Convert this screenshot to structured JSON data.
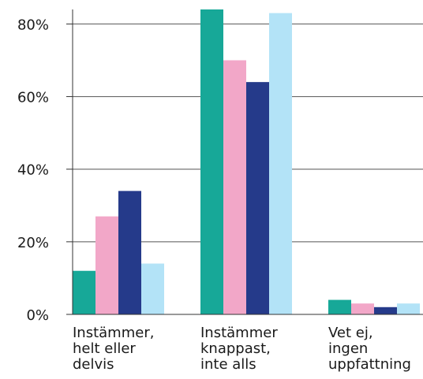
{
  "chart_data": {
    "type": "bar",
    "title": "",
    "xlabel": "",
    "ylabel": "",
    "categories": [
      [
        "Instämmer,",
        "helt eller",
        "delvis"
      ],
      [
        "Instämmer",
        "knappast,",
        "inte alls"
      ],
      [
        "Vet ej,",
        "ingen",
        "uppfattning"
      ]
    ],
    "series": [
      {
        "color": "#17a898",
        "values": [
          12,
          84,
          4
        ]
      },
      {
        "color": "#f2a7c8",
        "values": [
          27,
          70,
          3
        ]
      },
      {
        "color": "#253a8a",
        "values": [
          34,
          64,
          2
        ]
      },
      {
        "color": "#b3e3f7",
        "values": [
          14,
          83,
          3
        ]
      }
    ],
    "yticks": [
      {
        "value": 0,
        "label": "0%"
      },
      {
        "value": 20,
        "label": "20%"
      },
      {
        "value": 40,
        "label": "40%"
      },
      {
        "value": 60,
        "label": "60%"
      },
      {
        "value": 80,
        "label": "80%"
      }
    ],
    "ylim": [
      0,
      84
    ],
    "grid": true,
    "legend": "none"
  }
}
